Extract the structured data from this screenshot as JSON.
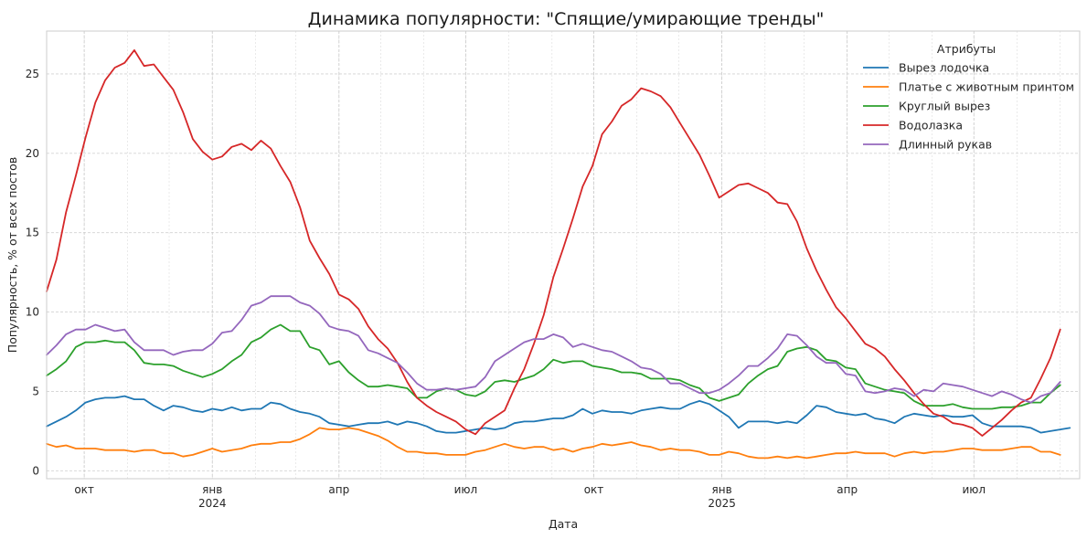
{
  "chart_data": {
    "type": "line",
    "title": "Динамика популярности: \"Спящие/умирающие тренды\"",
    "xlabel": "Дата",
    "ylabel": "Популярность, % от всех постов",
    "ylim": [
      -0.5,
      27.7
    ],
    "xlim": [
      "2023-09-04",
      "2025-09-15"
    ],
    "grid": true,
    "legend_position": "top-right",
    "legend_title": "Атрибуты",
    "y_ticks": [
      0,
      5,
      10,
      15,
      20,
      25
    ],
    "x_ticks": [
      {
        "date": "2023-10-01",
        "label": "окт",
        "year": ""
      },
      {
        "date": "2024-01-01",
        "label": "янв",
        "year": "2024"
      },
      {
        "date": "2024-04-01",
        "label": "апр",
        "year": ""
      },
      {
        "date": "2024-07-01",
        "label": "июл",
        "year": ""
      },
      {
        "date": "2024-10-01",
        "label": "окт",
        "year": ""
      },
      {
        "date": "2025-01-01",
        "label": "янв",
        "year": "2025"
      },
      {
        "date": "2025-04-01",
        "label": "апр",
        "year": ""
      },
      {
        "date": "2025-07-01",
        "label": "июл",
        "year": ""
      }
    ],
    "x_start": "2023-09-04",
    "x_step_days": 7,
    "series": [
      {
        "name": "Вырез лодочка",
        "color": "#1f77b4",
        "values": [
          2.8,
          3.1,
          3.4,
          3.8,
          4.3,
          4.5,
          4.6,
          4.6,
          4.7,
          4.5,
          4.5,
          4.1,
          3.8,
          4.1,
          4.0,
          3.8,
          3.7,
          3.9,
          3.8,
          4.0,
          3.8,
          3.9,
          3.9,
          4.3,
          4.2,
          3.9,
          3.7,
          3.6,
          3.4,
          3.0,
          2.9,
          2.8,
          2.9,
          3.0,
          3.0,
          3.1,
          2.9,
          3.1,
          3.0,
          2.8,
          2.5,
          2.4,
          2.4,
          2.5,
          2.6,
          2.7,
          2.6,
          2.7,
          3.0,
          3.1,
          3.1,
          3.2,
          3.3,
          3.3,
          3.5,
          3.9,
          3.6,
          3.8,
          3.7,
          3.7,
          3.6,
          3.8,
          3.9,
          4.0,
          3.9,
          3.9,
          4.2,
          4.4,
          4.2,
          3.8,
          3.4,
          2.7,
          3.1,
          3.1,
          3.1,
          3.0,
          3.1,
          3.0,
          3.5,
          4.1,
          4.0,
          3.7,
          3.6,
          3.5,
          3.6,
          3.3,
          3.2,
          3.0,
          3.4,
          3.6,
          3.5,
          3.4,
          3.5,
          3.4,
          3.4,
          3.5,
          3.0,
          2.8,
          2.8,
          2.8,
          2.8,
          2.7,
          2.4,
          2.5,
          2.6,
          2.7
        ]
      },
      {
        "name": "Платье с животным принтом",
        "color": "#ff7f0e",
        "values": [
          1.7,
          1.5,
          1.6,
          1.4,
          1.4,
          1.4,
          1.3,
          1.3,
          1.3,
          1.2,
          1.3,
          1.3,
          1.1,
          1.1,
          0.9,
          1.0,
          1.2,
          1.4,
          1.2,
          1.3,
          1.4,
          1.6,
          1.7,
          1.7,
          1.8,
          1.8,
          2.0,
          2.3,
          2.7,
          2.6,
          2.6,
          2.7,
          2.6,
          2.4,
          2.2,
          1.9,
          1.5,
          1.2,
          1.2,
          1.1,
          1.1,
          1.0,
          1.0,
          1.0,
          1.2,
          1.3,
          1.5,
          1.7,
          1.5,
          1.4,
          1.5,
          1.5,
          1.3,
          1.4,
          1.2,
          1.4,
          1.5,
          1.7,
          1.6,
          1.7,
          1.8,
          1.6,
          1.5,
          1.3,
          1.4,
          1.3,
          1.3,
          1.2,
          1.0,
          1.0,
          1.2,
          1.1,
          0.9,
          0.8,
          0.8,
          0.9,
          0.8,
          0.9,
          0.8,
          0.9,
          1.0,
          1.1,
          1.1,
          1.2,
          1.1,
          1.1,
          1.1,
          0.9,
          1.1,
          1.2,
          1.1,
          1.2,
          1.2,
          1.3,
          1.4,
          1.4,
          1.3,
          1.3,
          1.3,
          1.4,
          1.5,
          1.5,
          1.2,
          1.2,
          1.0
        ]
      },
      {
        "name": "Круглый вырез",
        "color": "#2ca02c",
        "values": [
          6.0,
          6.4,
          6.9,
          7.8,
          8.1,
          8.1,
          8.2,
          8.1,
          8.1,
          7.6,
          6.8,
          6.7,
          6.7,
          6.6,
          6.3,
          6.1,
          5.9,
          6.1,
          6.4,
          6.9,
          7.3,
          8.1,
          8.4,
          8.9,
          9.2,
          8.8,
          8.8,
          7.8,
          7.6,
          6.7,
          6.9,
          6.2,
          5.7,
          5.3,
          5.3,
          5.4,
          5.3,
          5.2,
          4.6,
          4.6,
          5.0,
          5.2,
          5.1,
          4.8,
          4.7,
          5.0,
          5.6,
          5.7,
          5.6,
          5.8,
          6.0,
          6.4,
          7.0,
          6.8,
          6.9,
          6.9,
          6.6,
          6.5,
          6.4,
          6.2,
          6.2,
          6.1,
          5.8,
          5.8,
          5.8,
          5.7,
          5.4,
          5.2,
          4.6,
          4.4,
          4.6,
          4.8,
          5.5,
          6.0,
          6.4,
          6.6,
          7.5,
          7.7,
          7.8,
          7.6,
          7.0,
          6.9,
          6.5,
          6.4,
          5.5,
          5.3,
          5.1,
          5.0,
          4.9,
          4.4,
          4.1,
          4.1,
          4.1,
          4.2,
          4.0,
          3.9,
          3.9,
          3.9,
          4.0,
          4.0,
          4.1,
          4.3,
          4.3,
          4.9,
          5.4
        ]
      },
      {
        "name": "Водолазка",
        "color": "#d62728",
        "values": [
          11.3,
          13.3,
          16.3,
          18.6,
          21.0,
          23.2,
          24.6,
          25.4,
          25.7,
          26.5,
          25.5,
          25.6,
          24.8,
          24.0,
          22.6,
          20.9,
          20.1,
          19.6,
          19.8,
          20.4,
          20.6,
          20.2,
          20.8,
          20.3,
          19.2,
          18.2,
          16.6,
          14.5,
          13.4,
          12.4,
          11.1,
          10.8,
          10.2,
          9.1,
          8.3,
          7.7,
          6.8,
          5.6,
          4.6,
          4.1,
          3.7,
          3.4,
          3.1,
          2.6,
          2.3,
          3.0,
          3.4,
          3.8,
          5.2,
          6.4,
          8.0,
          9.8,
          12.2,
          14.0,
          15.9,
          17.9,
          19.2,
          21.2,
          22.0,
          23.0,
          23.4,
          24.1,
          23.9,
          23.6,
          22.9,
          21.9,
          20.9,
          19.9,
          18.6,
          17.2,
          17.6,
          18.0,
          18.1,
          17.8,
          17.5,
          16.9,
          16.8,
          15.7,
          14.0,
          12.6,
          11.4,
          10.3,
          9.6,
          8.8,
          8.0,
          7.7,
          7.2,
          6.4,
          5.7,
          4.9,
          4.2,
          3.6,
          3.4,
          3.0,
          2.9,
          2.7,
          2.2,
          2.7,
          3.2,
          3.8,
          4.3,
          4.6,
          5.8,
          7.1,
          8.9
        ]
      },
      {
        "name": "Длинный рукав",
        "color": "#9467bd",
        "values": [
          7.3,
          7.9,
          8.6,
          8.9,
          8.9,
          9.2,
          9.0,
          8.8,
          8.9,
          8.1,
          7.6,
          7.6,
          7.6,
          7.3,
          7.5,
          7.6,
          7.6,
          8.0,
          8.7,
          8.8,
          9.5,
          10.4,
          10.6,
          11.0,
          11.0,
          11.0,
          10.6,
          10.4,
          9.9,
          9.1,
          8.9,
          8.8,
          8.5,
          7.6,
          7.4,
          7.1,
          6.8,
          6.2,
          5.5,
          5.1,
          5.1,
          5.2,
          5.1,
          5.2,
          5.3,
          5.9,
          6.9,
          7.3,
          7.7,
          8.1,
          8.3,
          8.3,
          8.6,
          8.4,
          7.8,
          8.0,
          7.8,
          7.6,
          7.5,
          7.2,
          6.9,
          6.5,
          6.4,
          6.1,
          5.5,
          5.5,
          5.2,
          4.9,
          4.9,
          5.1,
          5.5,
          6.0,
          6.6,
          6.6,
          7.1,
          7.7,
          8.6,
          8.5,
          7.9,
          7.2,
          6.8,
          6.8,
          6.1,
          6.0,
          5.0,
          4.9,
          5.0,
          5.2,
          5.1,
          4.7,
          5.1,
          5.0,
          5.5,
          5.4,
          5.3,
          5.1,
          4.9,
          4.7,
          5.0,
          4.8,
          4.5,
          4.3,
          4.7,
          4.9,
          5.6
        ]
      }
    ]
  }
}
